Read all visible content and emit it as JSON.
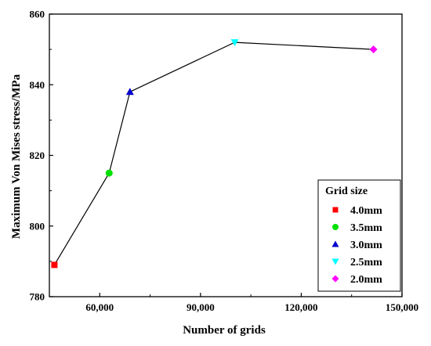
{
  "chart_data": {
    "type": "scatter",
    "xlabel": "Number of grids",
    "ylabel": "Maximum Von Mises stress/MPa",
    "xlim": [
      45000,
      150000
    ],
    "ylim": [
      780,
      860
    ],
    "x_ticks": [
      60000,
      90000,
      120000,
      150000
    ],
    "x_tick_labels": [
      "60,000",
      "90,000",
      "120,000",
      "150,000"
    ],
    "y_ticks": [
      780,
      800,
      820,
      840,
      860
    ],
    "y_tick_labels": [
      "780",
      "800",
      "820",
      "840",
      "860"
    ],
    "connecting_line": true,
    "grid": false,
    "legend": {
      "title": "Grid size",
      "placement": "bottom-right"
    },
    "series": [
      {
        "name": "4.0mm",
        "x": 46500,
        "y": 789,
        "marker": "square",
        "color": "#ff0000"
      },
      {
        "name": "3.5mm",
        "x": 62800,
        "y": 815,
        "marker": "circle",
        "color": "#00e000"
      },
      {
        "name": "3.0mm",
        "x": 69000,
        "y": 838,
        "marker": "triangle-up",
        "color": "#0000cc"
      },
      {
        "name": "2.5mm",
        "x": 100200,
        "y": 852,
        "marker": "triangle-down",
        "color": "#00ffff"
      },
      {
        "name": "2.0mm",
        "x": 141500,
        "y": 850,
        "marker": "diamond",
        "color": "#ff00ff"
      }
    ]
  }
}
